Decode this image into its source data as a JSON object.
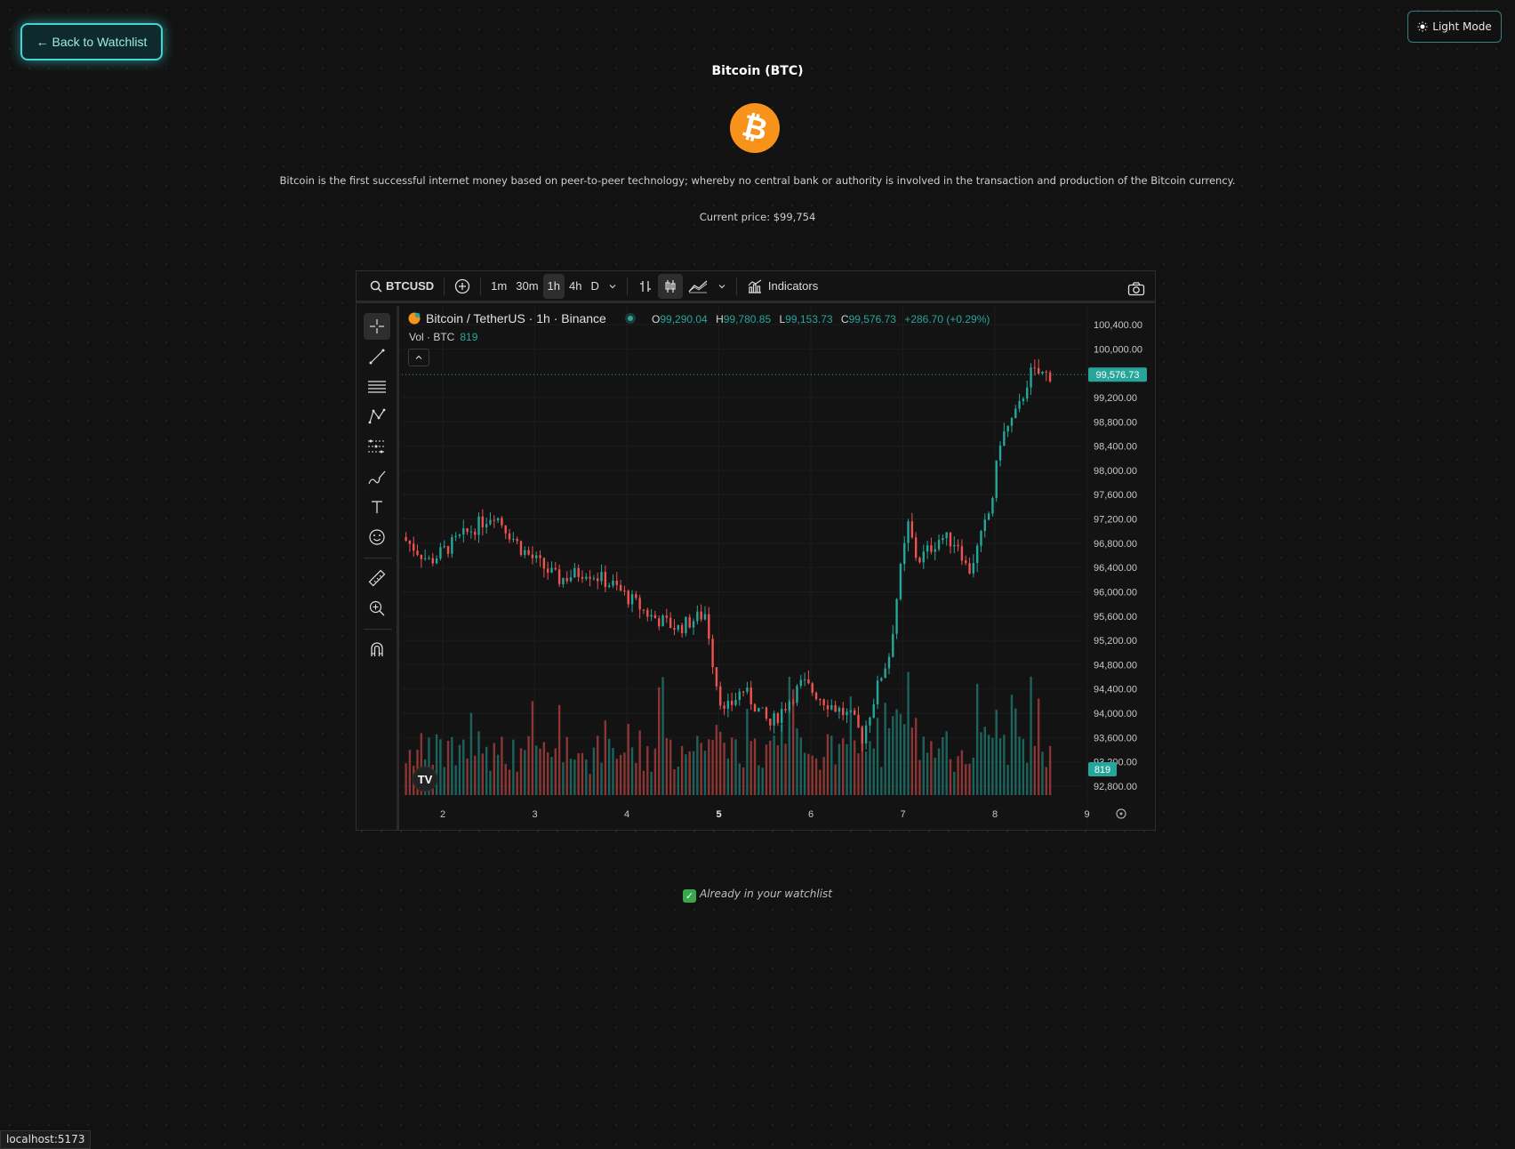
{
  "header": {
    "back_label": "← Back to Watchlist",
    "theme_label": "Light Mode",
    "theme_icon": "sun-icon"
  },
  "coin": {
    "title": "Bitcoin (BTC)",
    "logo_icon": "bitcoin-logo-icon",
    "logo_color": "#F7931A",
    "description": "Bitcoin is the first successful internet money based on peer-to-peer technology; whereby no central bank or authority is involved in the transaction and production of the Bitcoin currency.",
    "current_price": "Current price: $99,754"
  },
  "chart_widget": {
    "symbol": "BTCUSD",
    "intervals": [
      "1m",
      "30m",
      "1h",
      "4h",
      "D"
    ],
    "active_interval": "1h",
    "indicators_label": "Indicators",
    "legend_title": "Bitcoin / TetherUS · 1h · Binance",
    "ohlc": {
      "o_label": "O",
      "o": "99,290.04",
      "h_label": "H",
      "h": "99,780.85",
      "l_label": "L",
      "l": "99,153.73",
      "c_label": "C",
      "c": "99,576.73",
      "change": "+286.70 (+0.29%)"
    },
    "volume_label": "Vol · BTC",
    "volume_value": "819",
    "last_price_badge": "99,576.73",
    "volume_badge": "819",
    "up_color": "#26a69a",
    "down_color": "#ef5350"
  },
  "chart_data": {
    "type": "candlestick",
    "interval": "1h",
    "y_ticks": [
      "100,400.00",
      "100,000.00",
      "99,200.00",
      "98,800.00",
      "98,400.00",
      "98,000.00",
      "97,600.00",
      "97,200.00",
      "96,800.00",
      "96,400.00",
      "96,000.00",
      "95,600.00",
      "95,200.00",
      "94,800.00",
      "94,400.00",
      "94,000.00",
      "93,600.00",
      "93,200.00",
      "92,800.00"
    ],
    "x_ticks": [
      "2",
      "3",
      "4",
      "5",
      "6",
      "7",
      "8",
      "9"
    ],
    "ylim": [
      92800,
      100400
    ],
    "last_price": 99576.73,
    "anchors": [
      {
        "day": 1.6,
        "price": 96900
      },
      {
        "day": 1.9,
        "price": 96500
      },
      {
        "day": 2.2,
        "price": 96850
      },
      {
        "day": 2.6,
        "price": 97300
      },
      {
        "day": 2.9,
        "price": 96700
      },
      {
        "day": 3.3,
        "price": 96200
      },
      {
        "day": 3.6,
        "price": 96350
      },
      {
        "day": 3.9,
        "price": 96100
      },
      {
        "day": 4.3,
        "price": 95600
      },
      {
        "day": 4.6,
        "price": 95400
      },
      {
        "day": 4.9,
        "price": 95650
      },
      {
        "day": 5.0,
        "price": 94600
      },
      {
        "day": 5.1,
        "price": 94000
      },
      {
        "day": 5.3,
        "price": 94400
      },
      {
        "day": 5.6,
        "price": 93800
      },
      {
        "day": 5.95,
        "price": 94500
      },
      {
        "day": 6.2,
        "price": 94200
      },
      {
        "day": 6.5,
        "price": 93900
      },
      {
        "day": 6.6,
        "price": 93600
      },
      {
        "day": 6.8,
        "price": 94600
      },
      {
        "day": 6.9,
        "price": 95000
      },
      {
        "day": 7.0,
        "price": 96200
      },
      {
        "day": 7.1,
        "price": 97100
      },
      {
        "day": 7.2,
        "price": 96500
      },
      {
        "day": 7.45,
        "price": 96900
      },
      {
        "day": 7.65,
        "price": 96800
      },
      {
        "day": 7.75,
        "price": 96300
      },
      {
        "day": 7.85,
        "price": 96700
      },
      {
        "day": 8.0,
        "price": 97400
      },
      {
        "day": 8.1,
        "price": 98500
      },
      {
        "day": 8.3,
        "price": 99000
      },
      {
        "day": 8.42,
        "price": 99600
      },
      {
        "day": 8.6,
        "price": 99576.73
      }
    ]
  },
  "watchlist_status": "Already in your watchlist",
  "status_url": "localhost:5173"
}
